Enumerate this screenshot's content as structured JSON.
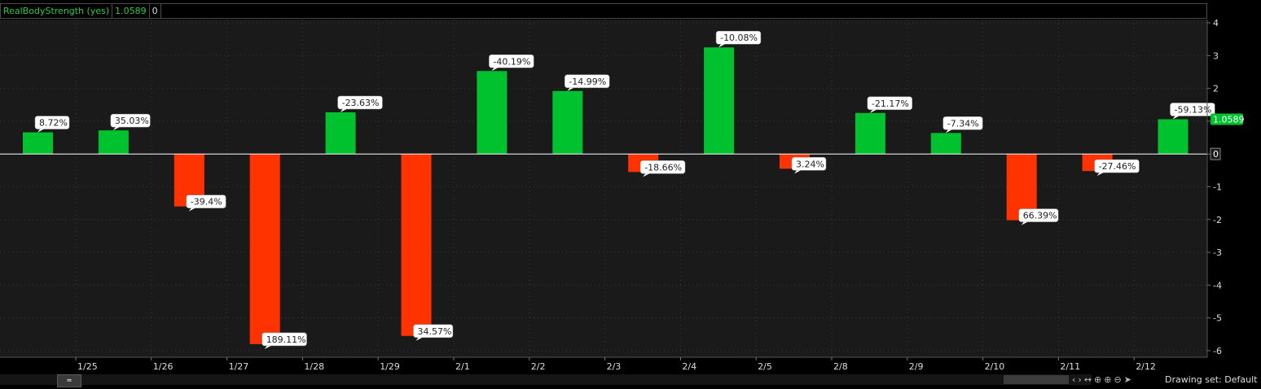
{
  "study": {
    "title": "RealBodyStrength (yes)",
    "value": "1.0589",
    "zero": "0"
  },
  "price_label": "1.0589",
  "zero_label": "0",
  "drawing_set": "Drawing set: Default",
  "scroll_handle_glyph": "≖",
  "toolbar": {
    "scroll_left": "‹",
    "scroll_right": "›",
    "expand": "↔",
    "crosshair": "⊕",
    "zoom_in": "⊕",
    "zoom_out": "⊖",
    "pointer": "➤"
  },
  "colors": {
    "background": "#000000",
    "plot_background": "#1a1a1a",
    "positive": "#00c22e",
    "negative": "#ff3300",
    "zero_line": "#ffffff",
    "grid": "#3a3a3a",
    "label_bg": "#ffffff"
  },
  "chart_data": {
    "type": "bar",
    "title": "RealBodyStrength (yes)",
    "ylim": [
      -6.2,
      4.1
    ],
    "yticks": [
      4,
      3,
      2,
      1,
      0,
      -1,
      -2,
      -3,
      -4,
      -5,
      -6
    ],
    "xticks": [
      "1/25",
      "1/26",
      "1/27",
      "1/28",
      "1/29",
      "2/1",
      "2/2",
      "2/3",
      "2/4",
      "2/5",
      "2/8",
      "2/9",
      "2/10",
      "2/11",
      "2/12"
    ],
    "bars": [
      {
        "value": 0.66,
        "label": "8.72%"
      },
      {
        "value": 0.72,
        "label": "35.03%"
      },
      {
        "value": -1.6,
        "label": "-39.4%"
      },
      {
        "value": -5.8,
        "label": "189.11%"
      },
      {
        "value": 1.27,
        "label": "-23.63%"
      },
      {
        "value": -5.55,
        "label": "34.57%"
      },
      {
        "value": 2.53,
        "label": "-40.19%"
      },
      {
        "value": 1.92,
        "label": "-14.99%"
      },
      {
        "value": -0.55,
        "label": "-18.66%"
      },
      {
        "value": 3.25,
        "label": "-10.08%"
      },
      {
        "value": -0.45,
        "label": "3.24%"
      },
      {
        "value": 1.25,
        "label": "-21.17%"
      },
      {
        "value": 0.64,
        "label": "-7.34%"
      },
      {
        "value": -2.02,
        "label": "66.39%"
      },
      {
        "value": -0.52,
        "label": "-27.46%"
      },
      {
        "value": 1.0589,
        "label": "-59.13%"
      }
    ]
  }
}
